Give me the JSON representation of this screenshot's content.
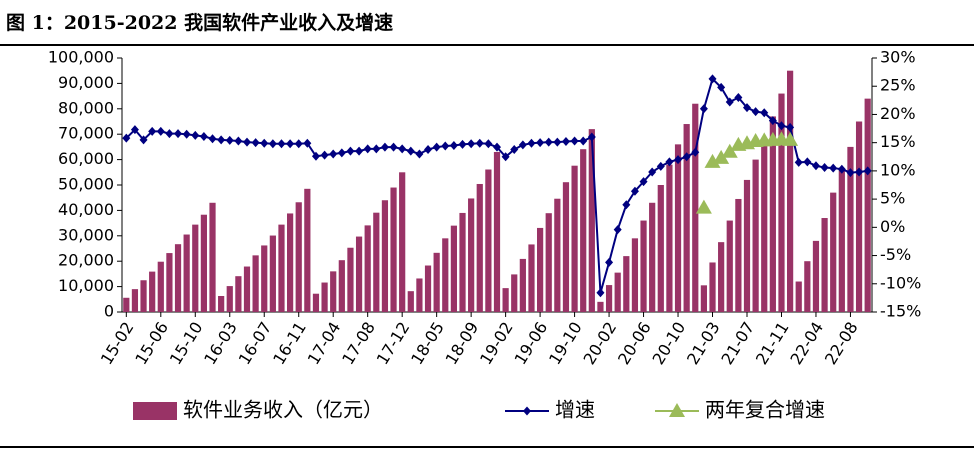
{
  "chart_data": {
    "type": "combo",
    "title": "图 1：2015-2022 我国软件产业收入及增速",
    "categories": [
      "15-02",
      null,
      null,
      null,
      "15-06",
      null,
      null,
      null,
      "15-10",
      null,
      null,
      null,
      "16-03",
      null,
      null,
      null,
      "16-07",
      null,
      null,
      null,
      "16-11",
      null,
      null,
      null,
      "17-04",
      null,
      null,
      null,
      "17-08",
      null,
      null,
      null,
      "17-12",
      null,
      null,
      null,
      "18-05",
      null,
      null,
      null,
      "18-09",
      null,
      null,
      null,
      "19-02",
      null,
      null,
      null,
      "19-06",
      null,
      null,
      null,
      "19-10",
      null,
      null,
      null,
      "20-02",
      null,
      null,
      null,
      "20-06",
      null,
      null,
      null,
      "20-10",
      null,
      null,
      null,
      "21-03",
      null,
      null,
      null,
      "21-07",
      null,
      null,
      null,
      "21-11",
      null,
      null,
      null,
      "22-04",
      null,
      null,
      null,
      "22-08",
      null,
      null
    ],
    "series": [
      {
        "name": "软件业务收入（亿元）",
        "type": "bar",
        "color": "#993366",
        "values": [
          5600,
          9000,
          12500,
          15900,
          19800,
          23200,
          26700,
          30500,
          34400,
          38300,
          43000,
          6300,
          10200,
          14100,
          17900,
          22300,
          26200,
          30100,
          34400,
          38800,
          43200,
          48500,
          7200,
          11600,
          16000,
          20400,
          25300,
          29700,
          34100,
          39100,
          44000,
          49000,
          55000,
          8200,
          13200,
          18300,
          23300,
          29000,
          34000,
          39000,
          44700,
          50400,
          56100,
          63000,
          9400,
          14800,
          20900,
          26600,
          33100,
          38900,
          44600,
          51100,
          57600,
          64100,
          72000,
          4000,
          10600,
          15500,
          22000,
          29000,
          36000,
          43000,
          50000,
          58000,
          66000,
          74000,
          82000,
          10500,
          19500,
          27500,
          36000,
          44500,
          52000,
          60000,
          68000,
          77000,
          86000,
          95000,
          12000,
          20000,
          28000,
          37000,
          47000,
          56000,
          65000,
          75000,
          84000
        ]
      },
      {
        "name": "增速",
        "type": "line",
        "axis": "y2",
        "color": "#000080",
        "marker": "diamond",
        "values": [
          15.8,
          17.3,
          15.5,
          17.0,
          17.0,
          16.6,
          16.6,
          16.5,
          16.3,
          16.1,
          15.7,
          15.5,
          15.4,
          15.3,
          15.1,
          15.0,
          14.9,
          14.8,
          14.8,
          14.8,
          14.8,
          14.9,
          12.6,
          12.8,
          13.0,
          13.2,
          13.5,
          13.5,
          13.9,
          13.9,
          14.2,
          14.2,
          13.9,
          13.5,
          13.0,
          13.8,
          14.2,
          14.4,
          14.5,
          14.7,
          14.8,
          14.9,
          14.8,
          14.2,
          12.5,
          13.8,
          14.6,
          14.9,
          15.0,
          15.1,
          15.1,
          15.2,
          15.3,
          15.3,
          16.0,
          -11.6,
          -6.2,
          -0.4,
          4.0,
          6.4,
          8.1,
          9.8,
          10.8,
          11.6,
          12.0,
          12.5,
          13.3,
          21.0,
          26.3,
          24.8,
          22.2,
          23.0,
          21.2,
          20.5,
          20.3,
          18.9,
          18.0,
          17.7,
          11.5,
          11.6,
          10.9,
          10.6,
          10.5,
          10.3,
          9.7,
          9.8,
          10.0
        ]
      },
      {
        "name": "两年复合增速",
        "type": "scatter",
        "axis": "y2",
        "color": "#9bbb59",
        "marker": "triangle",
        "values": [
          null,
          null,
          null,
          null,
          null,
          null,
          null,
          null,
          null,
          null,
          null,
          null,
          null,
          null,
          null,
          null,
          null,
          null,
          null,
          null,
          null,
          null,
          null,
          null,
          null,
          null,
          null,
          null,
          null,
          null,
          null,
          null,
          null,
          null,
          null,
          null,
          null,
          null,
          null,
          null,
          null,
          null,
          null,
          null,
          null,
          null,
          null,
          null,
          null,
          null,
          null,
          null,
          null,
          null,
          null,
          null,
          null,
          null,
          null,
          null,
          null,
          null,
          null,
          null,
          null,
          null,
          null,
          3.5,
          11.6,
          12.3,
          13.4,
          14.6,
          14.9,
          15.3,
          15.4,
          15.5,
          15.6,
          15.5,
          null,
          null,
          null,
          null,
          null,
          null,
          null,
          null,
          null
        ]
      }
    ],
    "ylim": [
      0,
      100000
    ],
    "yticks": [
      0,
      {
        "value": 10000,
        "label": "10,000"
      },
      {
        "value": 20000,
        "label": "20,000"
      },
      {
        "value": 30000,
        "label": "30,000"
      },
      {
        "value": 40000,
        "label": "40,000"
      },
      {
        "value": 50000,
        "label": "50,000"
      },
      {
        "value": 60000,
        "label": "60,000"
      },
      {
        "value": 70000,
        "label": "70,000"
      },
      {
        "value": 80000,
        "label": "80,000"
      },
      {
        "value": 90000,
        "label": "90,000"
      },
      {
        "value": 100000,
        "label": "100,000"
      }
    ],
    "y2lim": [
      -15,
      30
    ],
    "y2ticks": [
      {
        "value": -15,
        "label": "-15%"
      },
      {
        "value": -10,
        "label": "-10%"
      },
      {
        "value": -5,
        "label": "-5%"
      },
      {
        "value": 0,
        "label": "0%"
      },
      {
        "value": 5,
        "label": "5%"
      },
      {
        "value": 10,
        "label": "10%"
      },
      {
        "value": 15,
        "label": "15%"
      },
      {
        "value": 20,
        "label": "20%"
      },
      {
        "value": 25,
        "label": "25%"
      },
      {
        "value": 30,
        "label": "30%"
      }
    ],
    "legend": "bottom"
  }
}
